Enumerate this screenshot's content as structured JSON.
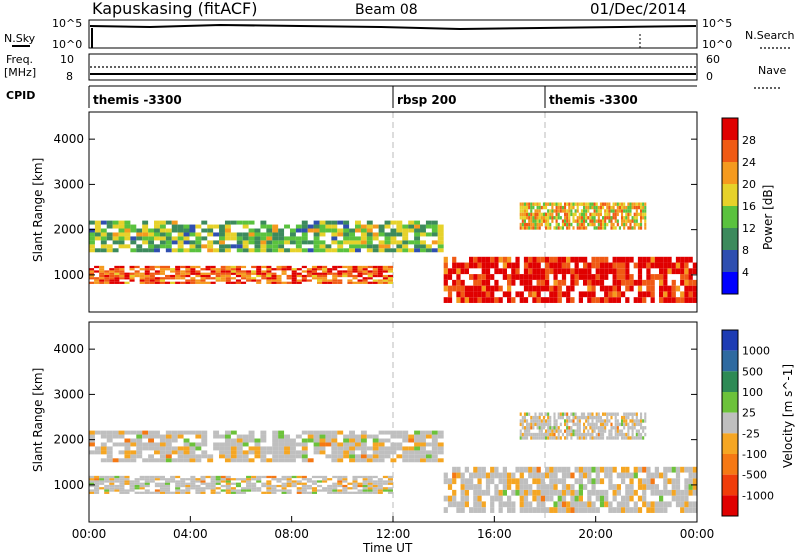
{
  "header": {
    "station": "Kapuskasing (fitACF)",
    "beam": "Beam 08",
    "date": "01/Dec/2014"
  },
  "summary": {
    "nsky_label": "N.Sky",
    "nsky_ticks": [
      "10^5",
      "10^0"
    ],
    "nsearch_label": "N.Search",
    "nsearch_ticks": [
      "10^5",
      "10^0"
    ],
    "freq_label": "Freq.",
    "freq_unit": "[MHz]",
    "freq_ticks": [
      "10",
      "8"
    ],
    "nave_label": "Nave",
    "nave_ticks": [
      "60",
      "0"
    ],
    "cpid_label": "CPID",
    "cpid_segments": [
      {
        "label": "themis -3300",
        "start_hour": 0
      },
      {
        "label": "rbsp 200",
        "start_hour": 12
      },
      {
        "label": "themis -3300",
        "start_hour": 18
      }
    ]
  },
  "chart_data": [
    {
      "type": "heatmap",
      "name": "power",
      "ylabel": "Slant Range [km]",
      "ylim": [
        180,
        4600
      ],
      "yticks": [
        1000,
        2000,
        3000,
        4000
      ],
      "xlim": [
        0,
        24
      ],
      "colorbar_label": "Power [dB]",
      "colorbar_ticks": [
        "4",
        "8",
        "12",
        "16",
        "20",
        "24",
        "28"
      ],
      "colorbar_colors": [
        "#0000ff",
        "#2f4fb0",
        "#3c8a5c",
        "#5ac23e",
        "#e6d22a",
        "#f59a1e",
        "#f05a14",
        "#e00000"
      ],
      "bands": [
        {
          "x": [
            0,
            12
          ],
          "y": [
            800,
            1200
          ],
          "value": 26
        },
        {
          "x": [
            0,
            14
          ],
          "y": [
            1500,
            2200
          ],
          "value": 14
        },
        {
          "x": [
            14,
            24
          ],
          "y": [
            380,
            1400
          ],
          "value": 30
        },
        {
          "x": [
            17,
            22
          ],
          "y": [
            2000,
            2600
          ],
          "value": 20
        }
      ]
    },
    {
      "type": "heatmap",
      "name": "velocity",
      "ylabel": "Slant Range [km]",
      "ylim": [
        180,
        4600
      ],
      "yticks": [
        1000,
        2000,
        3000,
        4000
      ],
      "xlim": [
        0,
        24
      ],
      "xticks": [
        "00:00",
        "04:00",
        "08:00",
        "12:00",
        "16:00",
        "20:00",
        "00:00"
      ],
      "xlabel": "Time UT",
      "colorbar_label": "Velocity [m s^-1]",
      "colorbar_ticks": [
        "1000",
        "500",
        "100",
        "25",
        "-25",
        "-100",
        "-500",
        "-1000"
      ],
      "colorbar_colors": [
        "#1e3cb4",
        "#2f6aa0",
        "#2e8a55",
        "#6cc23a",
        "#bfbfbf",
        "#f5a623",
        "#f57814",
        "#f03c0a",
        "#e00000"
      ]
    }
  ]
}
